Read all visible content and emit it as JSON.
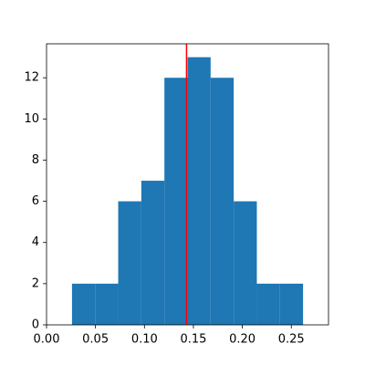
{
  "chart_data": {
    "type": "histogram",
    "bins": [
      0.026,
      0.0496,
      0.0732,
      0.0968,
      0.1204,
      0.144,
      0.1676,
      0.1912,
      0.2148,
      0.2384,
      0.262
    ],
    "values": [
      2,
      2,
      6,
      7,
      12,
      13,
      12,
      6,
      2,
      2
    ],
    "color": "#1f77b4",
    "vline": 0.143,
    "vline_color": "#ff0000",
    "xlim": [
      0,
      0.288
    ],
    "xticks": [
      {
        "value": 0,
        "label": "0.00"
      },
      0.05,
      {
        "value": 0.1,
        "label": "0.10"
      },
      0.15,
      {
        "value": 0.2,
        "label": "0.20"
      },
      0.25
    ],
    "ylim": [
      0,
      13.65
    ],
    "yticks": [
      0,
      2,
      4,
      6,
      8,
      10,
      12
    ],
    "grid": false
  }
}
